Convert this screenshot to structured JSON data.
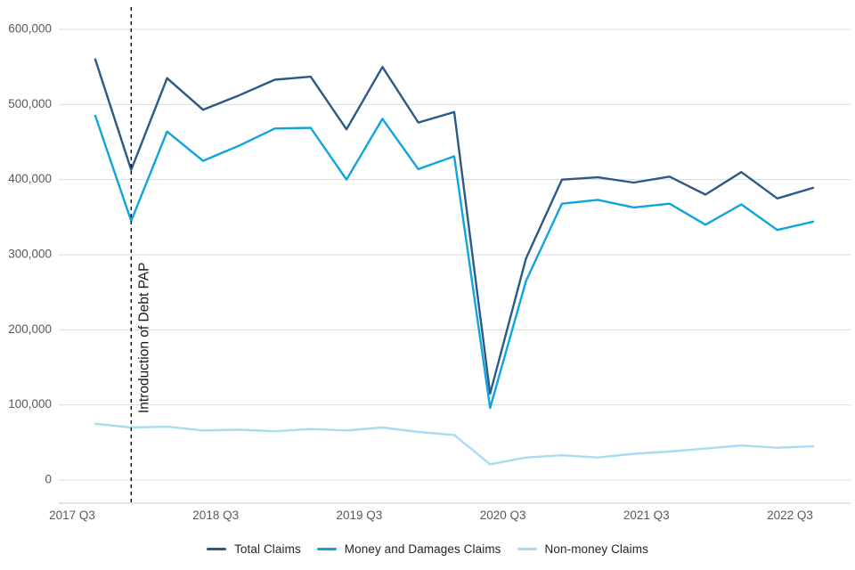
{
  "chart_data": {
    "type": "line",
    "categories": [
      "2017 Q3",
      "2017 Q4",
      "2018 Q1",
      "2018 Q2",
      "2018 Q3",
      "2018 Q4",
      "2019 Q1",
      "2019 Q2",
      "2019 Q3",
      "2019 Q4",
      "2020 Q1",
      "2020 Q2",
      "2020 Q3",
      "2020 Q4",
      "2021 Q1",
      "2021 Q2",
      "2021 Q3",
      "2021 Q4",
      "2022 Q1",
      "2022 Q2",
      "2022 Q3"
    ],
    "x_tick_labels": [
      "2017 Q3",
      "2018 Q3",
      "2019 Q3",
      "2020 Q3",
      "2021 Q3",
      "2022 Q3"
    ],
    "y_ticks": [
      {
        "value": 0,
        "label": "0"
      },
      {
        "value": 100000,
        "label": "100,000"
      },
      {
        "value": 200000,
        "label": "200,000"
      },
      {
        "value": 300000,
        "label": "300,000"
      },
      {
        "value": 400000,
        "label": "400,000"
      },
      {
        "value": 500000,
        "label": "500,000"
      },
      {
        "value": 600000,
        "label": "600,000"
      }
    ],
    "ylim": [
      0,
      600000
    ],
    "grid": true,
    "legend_position": "bottom",
    "annotation": {
      "label": "Introduction of Debt PAP",
      "category": "2017 Q4",
      "x_index": 1
    },
    "series": [
      {
        "name": "Total Claims",
        "color": "#2D5986",
        "values": [
          560000,
          413000,
          535000,
          493000,
          512000,
          533000,
          537000,
          467000,
          550000,
          476000,
          490000,
          115000,
          295000,
          400000,
          403000,
          396000,
          404000,
          380000,
          410000,
          375000,
          389000
        ]
      },
      {
        "name": "Money and Damages Claims",
        "color": "#0EA5DC",
        "values": [
          485000,
          345000,
          464000,
          425000,
          445000,
          468000,
          469000,
          400000,
          481000,
          414000,
          431000,
          96000,
          265000,
          368000,
          373000,
          363000,
          368000,
          340000,
          367000,
          333000,
          344000
        ]
      },
      {
        "name": "Non-money Claims",
        "color": "#A8DCF1",
        "values": [
          75000,
          70000,
          71000,
          66000,
          67000,
          65000,
          68000,
          66000,
          70000,
          64000,
          60000,
          21000,
          30000,
          33000,
          30000,
          35000,
          38000,
          42000,
          46000,
          43000,
          45000
        ]
      }
    ]
  }
}
